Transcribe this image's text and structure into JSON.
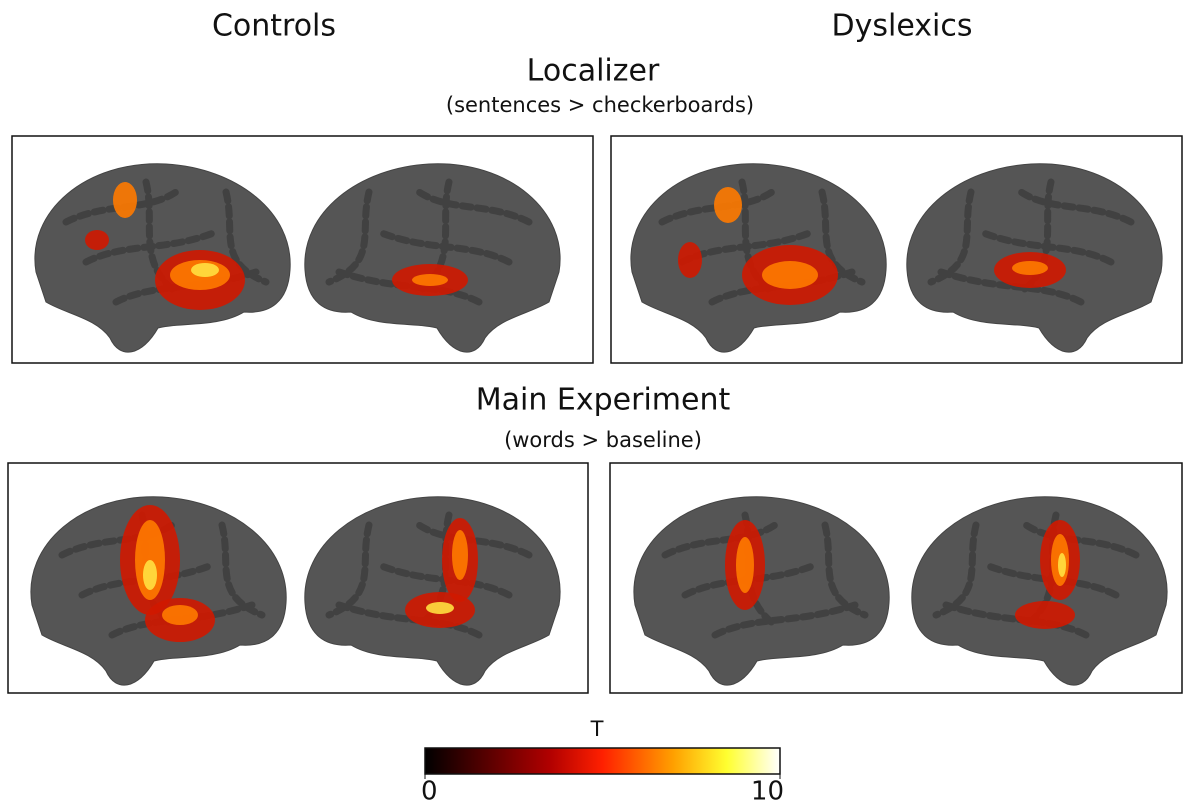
{
  "header": {
    "left": "Controls",
    "right": "Dyslexics"
  },
  "sections": [
    {
      "title": "Localizer",
      "subtitle": "(sentences > checkerboards)"
    },
    {
      "title": "Main Experiment",
      "subtitle": "(words > baseline)"
    }
  ],
  "colorbar": {
    "label": "T",
    "range": [
      0,
      10
    ],
    "ticks": [
      0,
      10
    ]
  }
}
